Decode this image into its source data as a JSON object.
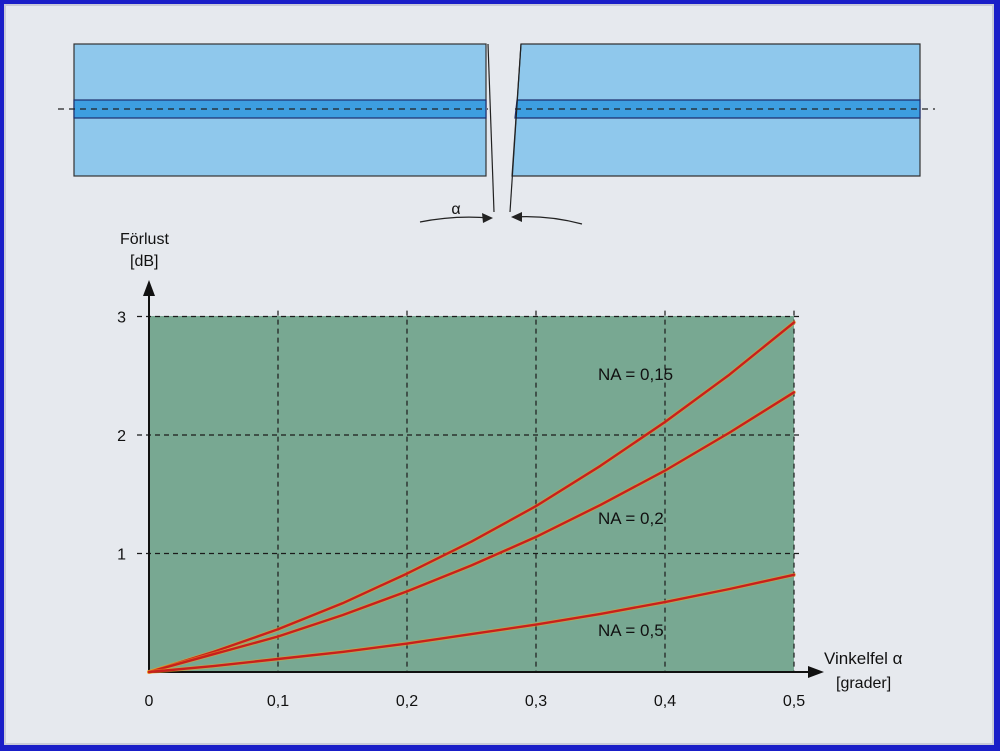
{
  "colors": {
    "frame": "#1a1ec8",
    "paper": "#e6e9ee",
    "fiber_cladding": "#8fc8ec",
    "fiber_core": "#3d9ee0",
    "plot_background": "#78a892",
    "curve": "#c8201c"
  },
  "diagram": {
    "angle_label": "α"
  },
  "chart_data": {
    "type": "line",
    "ylabel": "Förlust",
    "ylabel_unit": "[dB]",
    "xlabel": "Vinkelfel α",
    "xlabel_unit": "[grader]",
    "xlim": [
      0,
      0.5
    ],
    "ylim": [
      0,
      3
    ],
    "x_ticks": [
      "0",
      "0,1",
      "0,2",
      "0,3",
      "0,4",
      "0,5"
    ],
    "y_ticks": [
      "1",
      "2",
      "3"
    ],
    "grid": true,
    "series": [
      {
        "name": "NA = 0,15",
        "x": [
          0,
          0.05,
          0.1,
          0.15,
          0.2,
          0.25,
          0.3,
          0.35,
          0.4,
          0.45,
          0.5
        ],
        "y": [
          0,
          0.17,
          0.36,
          0.58,
          0.83,
          1.1,
          1.4,
          1.74,
          2.11,
          2.51,
          2.95
        ]
      },
      {
        "name": "NA = 0,2",
        "x": [
          0,
          0.05,
          0.1,
          0.15,
          0.2,
          0.25,
          0.3,
          0.35,
          0.4,
          0.45,
          0.5
        ],
        "y": [
          0,
          0.15,
          0.3,
          0.48,
          0.68,
          0.9,
          1.14,
          1.41,
          1.7,
          2.02,
          2.36
        ]
      },
      {
        "name": "NA = 0,5",
        "x": [
          0,
          0.05,
          0.1,
          0.15,
          0.2,
          0.25,
          0.3,
          0.35,
          0.4,
          0.45,
          0.5
        ],
        "y": [
          0,
          0.05,
          0.11,
          0.17,
          0.24,
          0.32,
          0.4,
          0.49,
          0.59,
          0.7,
          0.82
        ]
      }
    ]
  }
}
